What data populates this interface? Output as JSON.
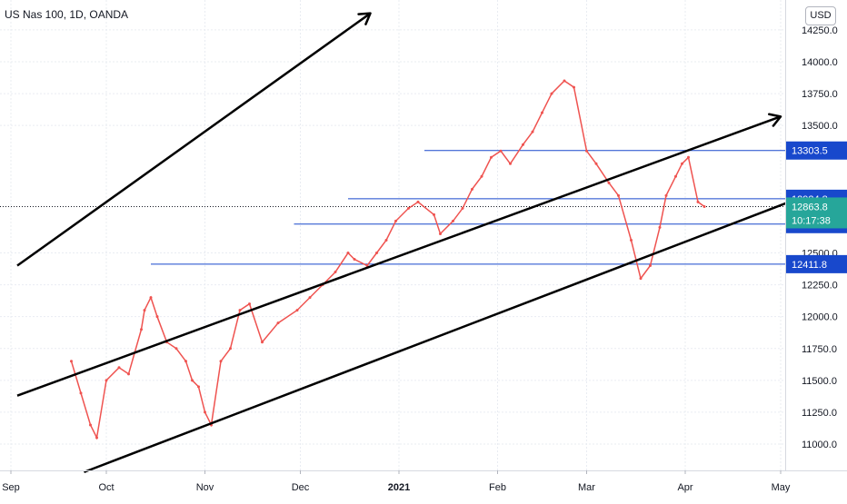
{
  "chart_data": {
    "type": "candlestick",
    "title": "US Nas 100, 1D, OANDA",
    "currency": "USD",
    "colors": {
      "up": "#26a69a",
      "down": "#ef5350",
      "hline": "#1848cc",
      "last": "#26a69a",
      "trend": "#000000",
      "grid": "#e9ecf2",
      "price_dotted": "#131722"
    },
    "ylim": [
      10800,
      14380
    ],
    "y_ticks": [
      "11000.0",
      "11250.0",
      "11500.0",
      "11750.0",
      "12000.0",
      "12250.0",
      "12500.0",
      "13500.0",
      "13750.0",
      "14000.0",
      "14250.0"
    ],
    "x_ticks": [
      "Sep",
      "Oct",
      "Nov",
      "Dec",
      "2021",
      "Feb",
      "Mar",
      "Apr",
      "May"
    ],
    "x_tick_dates": [
      "2020-09-01",
      "2020-10-01",
      "2020-11-01",
      "2020-12-01",
      "2021-01-01",
      "2021-02-01",
      "2021-03-01",
      "2021-04-01",
      "2021-05-01"
    ],
    "series": [
      {
        "color": "#ef5350",
        "points": [
          [
            "2020-09-20",
            11650
          ],
          [
            "2020-09-23",
            11400
          ],
          [
            "2020-09-26",
            11150
          ],
          [
            "2020-09-28",
            11050
          ],
          [
            "2020-10-01",
            11500
          ],
          [
            "2020-10-05",
            11600
          ],
          [
            "2020-10-08",
            11550
          ],
          [
            "2020-10-12",
            11900
          ],
          [
            "2020-10-13",
            12050
          ],
          [
            "2020-10-15",
            12150
          ],
          [
            "2020-10-17",
            12000
          ],
          [
            "2020-10-20",
            11800
          ],
          [
            "2020-10-23",
            11750
          ],
          [
            "2020-10-26",
            11650
          ],
          [
            "2020-10-28",
            11500
          ],
          [
            "2020-10-30",
            11450
          ],
          [
            "2020-11-01",
            11250
          ],
          [
            "2020-11-03",
            11150
          ],
          [
            "2020-11-06",
            11650
          ],
          [
            "2020-11-09",
            11750
          ],
          [
            "2020-11-12",
            12050
          ],
          [
            "2020-11-15",
            12100
          ],
          [
            "2020-11-19",
            11800
          ],
          [
            "2020-11-24",
            11950
          ],
          [
            "2020-11-30",
            12050
          ],
          [
            "2020-12-04",
            12150
          ],
          [
            "2020-12-08",
            12250
          ],
          [
            "2020-12-12",
            12350
          ],
          [
            "2020-12-16",
            12500
          ],
          [
            "2020-12-18",
            12450
          ],
          [
            "2020-12-22",
            12400
          ],
          [
            "2020-12-25",
            12500
          ],
          [
            "2020-12-28",
            12600
          ],
          [
            "2020-12-31",
            12750
          ],
          [
            "2021-01-04",
            12850
          ],
          [
            "2021-01-07",
            12900
          ],
          [
            "2021-01-12",
            12800
          ],
          [
            "2021-01-14",
            12650
          ],
          [
            "2021-01-18",
            12750
          ],
          [
            "2021-01-21",
            12850
          ],
          [
            "2021-01-24",
            13000
          ],
          [
            "2021-01-27",
            13100
          ],
          [
            "2021-01-30",
            13250
          ],
          [
            "2021-02-02",
            13300
          ],
          [
            "2021-02-05",
            13200
          ],
          [
            "2021-02-09",
            13350
          ],
          [
            "2021-02-12",
            13450
          ],
          [
            "2021-02-15",
            13600
          ],
          [
            "2021-02-18",
            13750
          ],
          [
            "2021-02-22",
            13850
          ],
          [
            "2021-02-25",
            13800
          ],
          [
            "2021-03-01",
            13300
          ],
          [
            "2021-03-04",
            13200
          ],
          [
            "2021-03-08",
            13050
          ],
          [
            "2021-03-11",
            12950
          ],
          [
            "2021-03-15",
            12600
          ],
          [
            "2021-03-18",
            12300
          ],
          [
            "2021-03-21",
            12400
          ],
          [
            "2021-03-24",
            12700
          ],
          [
            "2021-03-26",
            12950
          ],
          [
            "2021-03-29",
            13100
          ],
          [
            "2021-03-31",
            13200
          ],
          [
            "2021-04-02",
            13250
          ],
          [
            "2021-04-05",
            12900
          ],
          [
            "2021-04-07",
            12863.8
          ]
        ]
      }
    ],
    "horizontal_lines": [
      {
        "label": "13303.5",
        "value": 13303.5,
        "start": "2021-01-09"
      },
      {
        "label": "12924.8",
        "value": 12924.8,
        "start": "2020-12-16"
      },
      {
        "label": "12726.0",
        "value": 12726.0,
        "start": "2020-11-29"
      },
      {
        "label": "12411.8",
        "value": 12411.8,
        "start": "2020-10-15"
      }
    ],
    "last_price": {
      "label": "12863.8",
      "value": 12863.8,
      "countdown": "10:17:38"
    },
    "trend_lines": [
      {
        "from": [
          "2020-09-03",
          12400
        ],
        "to": [
          "2020-12-23",
          14380
        ],
        "arrow": true
      },
      {
        "from": [
          "2020-09-03",
          11380
        ],
        "to": [
          "2021-05-01",
          13570
        ],
        "arrow": true
      },
      {
        "from": [
          "2020-09-24",
          10780
        ],
        "to": [
          "2021-05-10",
          12960
        ],
        "arrow": false
      }
    ]
  }
}
